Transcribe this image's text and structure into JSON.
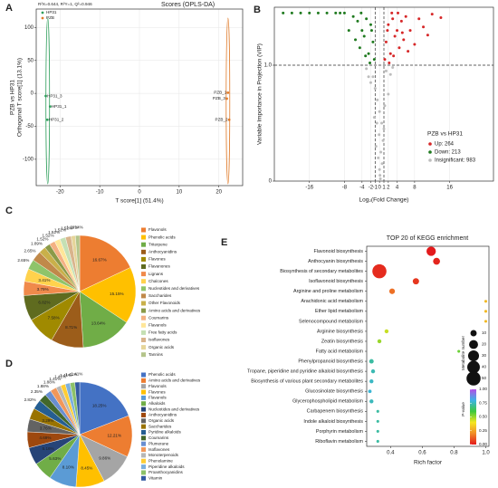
{
  "chart_data": [
    {
      "type": "scatter",
      "panel": "A",
      "title": "R²X=0.644, R²Y=1, Q²=0.946",
      "subtitle": "Scores (OPLS-DA)",
      "xlabel": "T score[1] (51.4%)",
      "ylabel": "Orthogonal T score[1] (13.1%)",
      "ylabel_top": "PZB vs HP31",
      "xlim": [
        -26,
        26
      ],
      "ylim": [
        -140,
        128
      ],
      "xticks": [
        -20,
        -10,
        0,
        10,
        20
      ],
      "yticks": [
        -100,
        -50,
        0,
        50,
        100
      ],
      "grid": true,
      "series": [
        {
          "name": "HP31",
          "color": "#2e9e5b",
          "x": [
            -22.5,
            -23.2,
            -23.6
          ],
          "y": [
            -20,
            -40,
            -4
          ],
          "labels": [
            "HP31_1",
            "HP31_2",
            "HP31_3"
          ]
        },
        {
          "name": "PZB",
          "color": "#e07b2a",
          "x": [
            22.3,
            22.6,
            22.0
          ],
          "y": [
            1,
            -40,
            -8
          ],
          "labels": [
            "PZB_1",
            "PZB_2",
            "PZB_3"
          ]
        }
      ]
    },
    {
      "type": "volcano",
      "panel": "B",
      "xlabel": "Log₂(Fold Change)",
      "ylabel": "Variable Importance in Projection (VIP)",
      "xlim": [
        -24,
        26
      ],
      "ylim": [
        0,
        1.5
      ],
      "xticks": [
        -16,
        -8,
        -4,
        -2,
        -1,
        0,
        1,
        2,
        4,
        8,
        16
      ],
      "yticks": [
        0,
        {
          "value": 1,
          "label": "1.0"
        }
      ],
      "grid": true,
      "hlines": [
        1
      ],
      "vlines": [
        -1,
        1
      ],
      "legend_title": "PZB vs HP31",
      "series": [
        {
          "name": "Up: 264",
          "color": "#d62728",
          "x": [
            1.2,
            1.5,
            2,
            2.5,
            3,
            3.5,
            4,
            4.5,
            5,
            5.5,
            6,
            7,
            8,
            9,
            10,
            11,
            12,
            14,
            2.2,
            3.2,
            4.2,
            6.5,
            1.8,
            2.8,
            5.2
          ],
          "y": [
            1.05,
            1.2,
            1.35,
            1.1,
            1.4,
            1.25,
            1.3,
            1.15,
            1.38,
            1.22,
            1.42,
            1.3,
            1.18,
            1.4,
            1.33,
            1.26,
            1.44,
            1.41,
            1.02,
            1.08,
            1.45,
            1.12,
            1.3,
            1.45,
            1.28
          ]
        },
        {
          "name": "Down: 213",
          "color": "#1f7a1f",
          "x": [
            -1.2,
            -1.5,
            -2,
            -2.5,
            -3,
            -3.5,
            -4,
            -4.5,
            -5,
            -5.5,
            -6,
            -7,
            -8,
            -9,
            -10,
            -12,
            -14,
            -16,
            -18,
            -20,
            -22,
            -2.2,
            -3.2,
            -4.2,
            -1.8
          ],
          "y": [
            1.05,
            1.2,
            1.35,
            1.1,
            1.4,
            1.25,
            1.3,
            1.15,
            1.38,
            1.22,
            1.42,
            1.3,
            1.45,
            1.45,
            1.45,
            1.45,
            1.45,
            1.45,
            1.45,
            1.45,
            1.45,
            1.02,
            1.08,
            1.45,
            1.3
          ]
        },
        {
          "name": "Insignificant: 983",
          "color": "#bdbdbd",
          "x": [
            -1.5,
            -1,
            -0.5,
            0,
            0.5,
            1,
            1.5,
            -2,
            2,
            -0.8,
            0.8,
            -0.3,
            0.3,
            0,
            -1.2,
            1.2,
            -2.5,
            2.5,
            0.1,
            -0.1,
            3,
            -3,
            0.6,
            -0.6,
            0.2
          ],
          "y": [
            0.9,
            0.8,
            0.7,
            0.6,
            0.5,
            0.45,
            0.95,
            0.85,
            0.75,
            0.3,
            0.35,
            0.2,
            0.25,
            0.1,
            0.55,
            0.65,
            0.9,
            0.92,
            0.05,
            0.4,
            0.98,
            0.97,
            0.15,
            0.5,
            0.02
          ]
        }
      ]
    },
    {
      "type": "pie",
      "panel": "C",
      "categories": [
        "Flavonols",
        "Phenolic acids",
        "Triterpene",
        "Anthocyanidins",
        "Flavones",
        "Flavanones",
        "Lignans",
        "Chalcones",
        "Nucleotides and derivatives",
        "Saccharides",
        "Other Flavonoids",
        "Amino acids and derivatives",
        "Coumarins",
        "Flavanols",
        "Free fatty acids",
        "Isoflavones",
        "Organic acids",
        "Tannins"
      ],
      "values": [
        16.67,
        15.15,
        13.64,
        8.71,
        7.58,
        6.82,
        3.79,
        3.41,
        2.65,
        2.65,
        1.89,
        1.52,
        1.52,
        1.52,
        1.52,
        1.52,
        1.14,
        1.14
      ],
      "value_labels": [
        "16.67%",
        "15.15%",
        "13.64%",
        "8.71%",
        "7.58%",
        "6.82%",
        "3.79%",
        "3.41%",
        "2.65%",
        "2.65%",
        "1.89%",
        "1.52%",
        "1.52%",
        "1.52%",
        "1.52%",
        "1.52%",
        "1.14%",
        "1.14%"
      ],
      "colors": [
        "#ed7d31",
        "#ffc000",
        "#70ad47",
        "#9c5d1a",
        "#a08a00",
        "#5f6b1f",
        "#f08a4b",
        "#ffd24d",
        "#8fc46a",
        "#c0894a",
        "#c9b04a",
        "#8b9a48",
        "#f4b183",
        "#ffe699",
        "#c5e0b4",
        "#d9b48c",
        "#e6d59a",
        "#b4c48a"
      ]
    },
    {
      "type": "pie",
      "panel": "D",
      "categories": [
        "Phenolic acids",
        "Amino acids and derivatives",
        "Flavonols",
        "Flavones",
        "Flavanols",
        "Alkaloids",
        "Nucleotides and derivatives",
        "Anthocyanidins",
        "Organic acids",
        "Saccharides",
        "Pyridine alkaloids",
        "Coumarins",
        "Plumerane",
        "Isoflavones",
        "Monoterpenoids",
        "Phenolamine",
        "Piperidine alkaloids",
        "Proanthocyanidins",
        "Vitamin"
      ],
      "values": [
        18.25,
        12.21,
        9.86,
        8.45,
        8.1,
        5.63,
        5.16,
        4.69,
        3.76,
        3.29,
        2.82,
        2.35,
        1.88,
        1.88,
        1.41,
        1.41,
        1.41,
        1.41,
        1.41
      ],
      "value_labels": [
        "18.25%",
        "12.21%",
        "9.86%",
        "8.45%",
        "8.10%",
        "5.63%",
        "5.16%",
        "4.69%",
        "3.76%",
        "3.29%",
        "2.82%",
        "2.35%",
        "1.88%",
        "1.88%",
        "1.41%",
        "1.41%",
        "1.41%",
        "1.41%",
        "1.41%"
      ],
      "colors": [
        "#4472c4",
        "#ed7d31",
        "#a5a5a5",
        "#ffc000",
        "#5b9bd5",
        "#70ad47",
        "#264478",
        "#9e480e",
        "#636363",
        "#997300",
        "#255e91",
        "#43682b",
        "#698ed0",
        "#f1975a",
        "#b7b7b7",
        "#ffcd33",
        "#7cafdd",
        "#8cc168",
        "#335aa1"
      ]
    },
    {
      "type": "bubble",
      "panel": "E",
      "title": "TOP 20 of KEGG enrichment",
      "xlabel": "Rich factor",
      "categories": [
        "Flavonoid biosynthesis",
        "Anthocyanin biosynthesis",
        "Biosynthesis of secondary metabolites",
        "Isoflavonoid biosynthesis",
        "Arginine and proline metabolism",
        "Arachidonic acid metabolism",
        "Ether lipid metabolism",
        "Selenocompound metabolism",
        "Arginine biosynthesis",
        "Zeatin biosynthesis",
        "Fatty acid metabolism",
        "Phenylpropanoid biosynthesis",
        "Tropane, piperidine and pyridine alkaloid biosynthesis",
        "Biosynthesis of various plant secondary metabolites",
        "Glucosinolate biosynthesis",
        "Glycerophospholipid metabolism",
        "Carbapenem biosynthesis",
        "Indole alkaloid biosynthesis",
        "Porphyrin metabolism",
        "Riboflavin metabolism"
      ],
      "x": [
        0.656,
        0.69,
        0.33,
        0.56,
        0.41,
        1.0,
        1.0,
        1.0,
        0.375,
        0.33,
        0.83,
        0.28,
        0.29,
        0.28,
        0.27,
        0.28,
        0.32,
        0.32,
        0.32,
        0.32
      ],
      "size": [
        22,
        12,
        50,
        10,
        8,
        2,
        2,
        2,
        4,
        4,
        2,
        5,
        4,
        4,
        3,
        4,
        2,
        2,
        2,
        2
      ],
      "pvalue": [
        0.0,
        0.02,
        0.03,
        0.05,
        0.15,
        0.3,
        0.3,
        0.3,
        0.45,
        0.5,
        0.55,
        0.72,
        0.74,
        0.76,
        0.78,
        0.75,
        0.72,
        0.72,
        0.72,
        0.72
      ],
      "xlim": [
        0.25,
        1.02
      ],
      "xticks": [
        0.4,
        0.6,
        0.8,
        {
          "value": 1,
          "label": "1.0"
        }
      ],
      "size_label": "Metabolite number",
      "size_ticks": [
        10,
        20,
        30,
        40,
        50
      ],
      "color_label": "P-value",
      "color_ticks": [
        {
          "value": 0,
          "label": "0.00"
        },
        {
          "value": 0.25,
          "label": "0.25"
        },
        {
          "value": 0.5,
          "label": "0.50"
        },
        {
          "value": 0.75,
          "label": "0.75"
        },
        {
          "value": 1,
          "label": "1.00"
        }
      ],
      "colorscale": [
        "#e31a1c",
        "#f08c28",
        "#f5e61e",
        "#3cc83c",
        "#3cb4e6",
        "#b450e6"
      ]
    }
  ]
}
